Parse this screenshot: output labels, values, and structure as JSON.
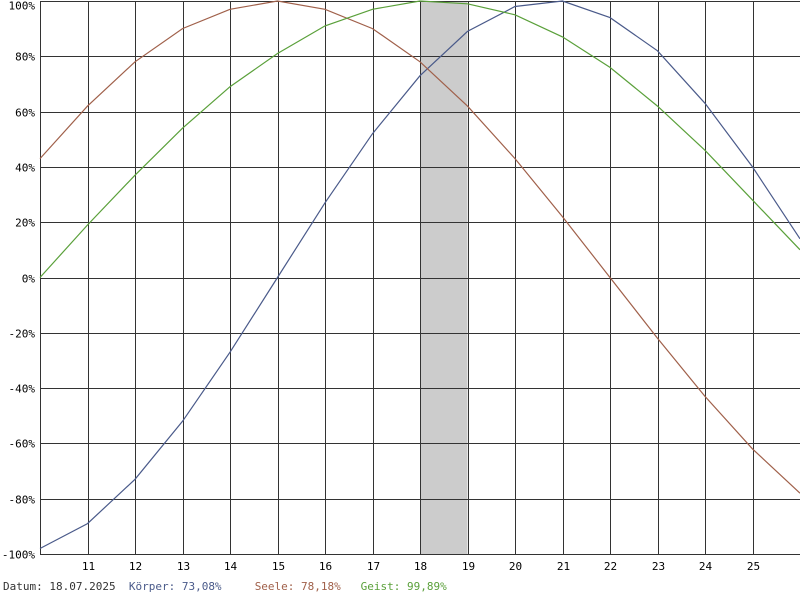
{
  "chart_data": {
    "type": "line",
    "x_range": [
      10,
      26
    ],
    "ylim": [
      -100,
      100
    ],
    "y_ticks": [
      100,
      80,
      60,
      40,
      20,
      0,
      -20,
      -40,
      -60,
      -80,
      -100
    ],
    "y_tick_labels": [
      "100%",
      "80%",
      "60%",
      "40%",
      "20%",
      "0%",
      "-20%",
      "-40%",
      "-60%",
      "-80%",
      "-100%"
    ],
    "x_ticks": [
      11,
      12,
      13,
      14,
      15,
      16,
      17,
      18,
      19,
      20,
      21,
      22,
      23,
      24,
      25
    ],
    "x_tick_labels": [
      "11",
      "12",
      "13",
      "14",
      "15",
      "16",
      "17",
      "18",
      "19",
      "20",
      "21",
      "22",
      "23",
      "24",
      "25"
    ],
    "grid": true,
    "highlight": {
      "from": 18,
      "to": 19,
      "color": "#cccccc"
    },
    "series": [
      {
        "color": "#4a5a8a",
        "x": [
          10,
          11,
          12,
          13,
          14,
          15,
          16,
          17,
          18,
          19,
          20,
          21,
          22,
          23,
          24,
          25,
          26
        ],
        "values": [
          -98,
          -89,
          -73,
          -52,
          -27,
          0,
          27,
          52,
          73,
          89,
          98,
          100,
          94,
          82,
          63,
          40,
          14
        ]
      },
      {
        "color": "#a0604a",
        "x": [
          10,
          11,
          12,
          13,
          14,
          15,
          16,
          17,
          18,
          19,
          20,
          21,
          22,
          23,
          24,
          25,
          26
        ],
        "values": [
          43,
          62,
          78,
          90,
          97,
          100,
          97,
          90,
          78,
          62,
          43,
          22,
          0,
          -22,
          -43,
          -62,
          -78
        ]
      },
      {
        "color": "#5aa03a",
        "x": [
          10,
          11,
          12,
          13,
          14,
          15,
          16,
          17,
          18,
          19,
          20,
          21,
          22,
          23,
          24,
          25,
          26
        ],
        "values": [
          0,
          19,
          37,
          54,
          69,
          81,
          91,
          97,
          100,
          99,
          95,
          87,
          76,
          62,
          46,
          28,
          10
        ]
      }
    ]
  },
  "legend": {
    "date": "Datum: 18.07.2025",
    "body": "Körper: 73,08%",
    "soul": "Seele: 78,18%",
    "mind": "Geist: 99,89%"
  },
  "colors": {
    "body": "#4a5a8a",
    "soul": "#a0604a",
    "mind": "#5aa03a",
    "date": "#333333",
    "grid": "#333333"
  }
}
